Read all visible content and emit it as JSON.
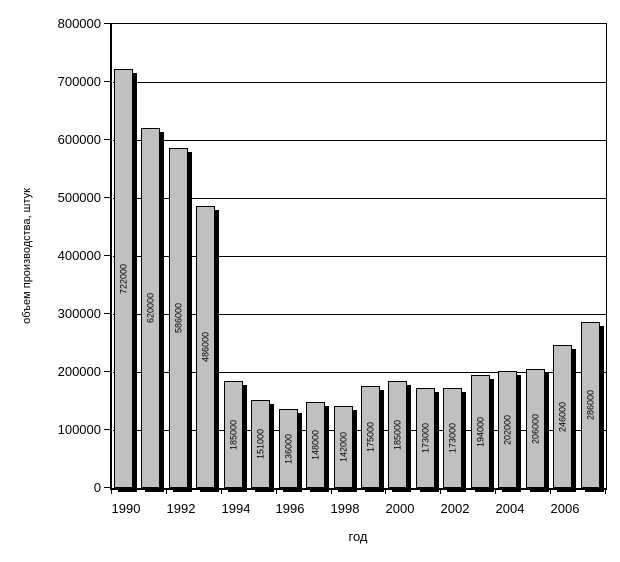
{
  "chart_data": {
    "type": "bar",
    "title": "",
    "xlabel": "год",
    "ylabel": "объем производства, штук",
    "categories": [
      "1990",
      "1991",
      "1992",
      "1993",
      "1994",
      "1995",
      "1996",
      "1997",
      "1998",
      "1999",
      "2000",
      "2001",
      "2002",
      "2003",
      "2004",
      "2005",
      "2006",
      "2007"
    ],
    "values": [
      722000,
      620000,
      586000,
      486000,
      185000,
      151000,
      136000,
      148000,
      142000,
      175000,
      185000,
      173000,
      173000,
      194000,
      202000,
      206000,
      246000,
      286000
    ],
    "data_labels": [
      "722000",
      "620000",
      "586000",
      "486000",
      "185000",
      "151000",
      "136000",
      "148000",
      "142000",
      "175000",
      "185000",
      "173000",
      "173000",
      "194000",
      "202000",
      "206000",
      "246000",
      "286000"
    ],
    "ylim": [
      0,
      800000
    ],
    "yticks": [
      0,
      100000,
      200000,
      300000,
      400000,
      500000,
      600000,
      700000,
      800000
    ],
    "xticks_shown": [
      "1990",
      "1992",
      "1994",
      "1996",
      "1998",
      "2000",
      "2002",
      "2004",
      "2006"
    ],
    "xtick_label_every": 2,
    "grid": "horizontal",
    "legend": "none",
    "bar_color": "#c0c0c0",
    "bar_border_color": "#000000",
    "bar_shadow_color": "#000000",
    "axis_color": "#000000",
    "plot_background_color": "#ffffff",
    "background_color": "#ffffff"
  }
}
